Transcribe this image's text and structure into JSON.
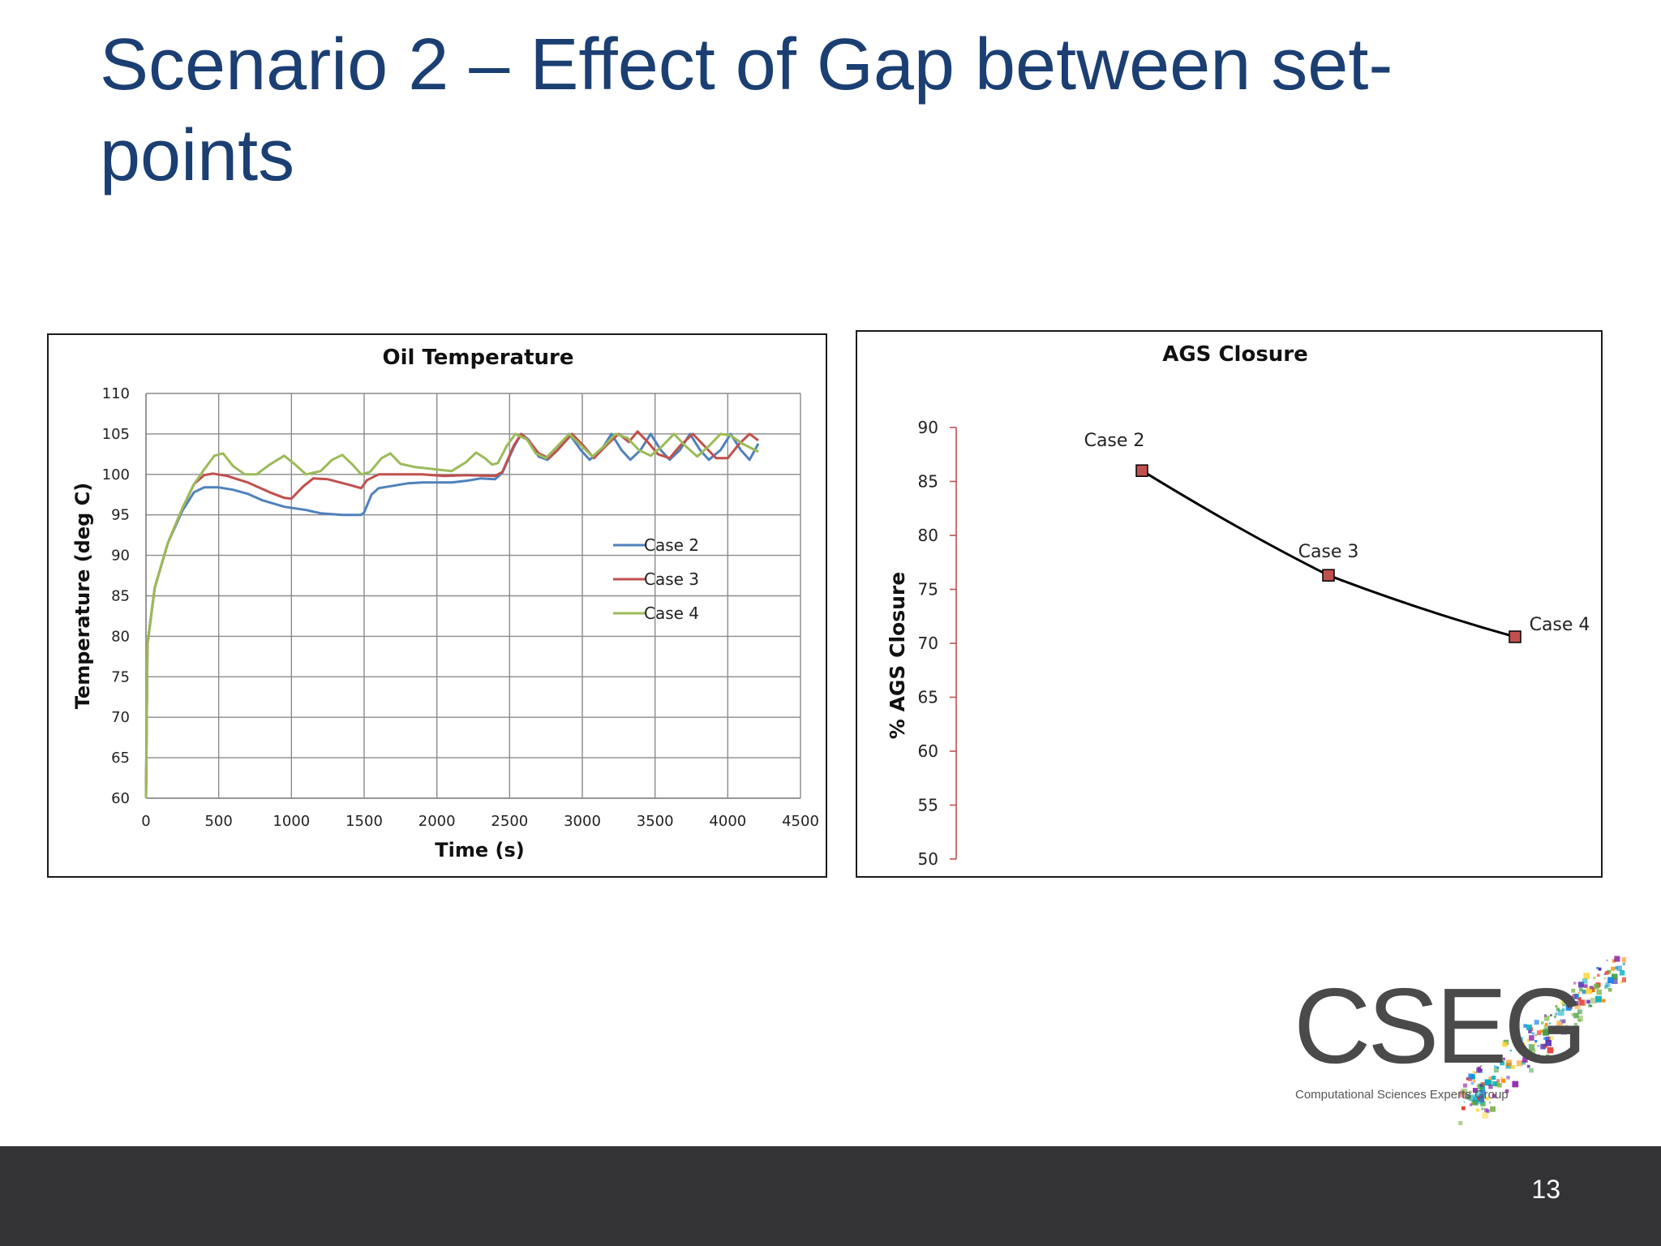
{
  "slide": {
    "title": "Scenario 2 – Effect of Gap between set-points",
    "page_number": "13"
  },
  "logo": {
    "text": "CSEG",
    "subtitle": "Computational Sciences Experts Group"
  },
  "colors": {
    "title": "#1b3f73",
    "case2": "#4f81bd",
    "case3": "#c0504d",
    "case4": "#9bbb59",
    "ags_line": "#000000",
    "ags_marker": "#c0504d",
    "ags_axis": "#c0504d",
    "footer": "#333335"
  },
  "chart_data": [
    {
      "type": "line",
      "title": "Oil Temperature",
      "xlabel": "Time (s)",
      "ylabel": "Temperature (deg C)",
      "xlim": [
        0,
        4500
      ],
      "ylim": [
        60,
        110
      ],
      "xticks": [
        "0",
        "500",
        "1000",
        "1500",
        "2000",
        "2500",
        "3000",
        "3500",
        "4000",
        "4500"
      ],
      "yticks": [
        "60",
        "65",
        "70",
        "75",
        "80",
        "85",
        "90",
        "95",
        "100",
        "105",
        "110"
      ],
      "grid": true,
      "legend": "center-right",
      "series": [
        {
          "name": "Case 2",
          "points": [
            [
              0,
              60
            ],
            [
              10,
              79
            ],
            [
              60,
              86
            ],
            [
              150,
              91.5
            ],
            [
              250,
              95.5
            ],
            [
              330,
              97.8
            ],
            [
              400,
              98.4
            ],
            [
              500,
              98.4
            ],
            [
              600,
              98.1
            ],
            [
              700,
              97.6
            ],
            [
              800,
              96.8
            ],
            [
              950,
              96
            ],
            [
              1100,
              95.6
            ],
            [
              1200,
              95.2
            ],
            [
              1350,
              95
            ],
            [
              1480,
              95
            ],
            [
              1500,
              95.3
            ],
            [
              1550,
              97.5
            ],
            [
              1600,
              98.3
            ],
            [
              1700,
              98.6
            ],
            [
              1800,
              98.9
            ],
            [
              1900,
              99
            ],
            [
              2000,
              99
            ],
            [
              2100,
              99
            ],
            [
              2200,
              99.2
            ],
            [
              2300,
              99.5
            ],
            [
              2400,
              99.4
            ],
            [
              2450,
              100.2
            ],
            [
              2530,
              103.4
            ],
            [
              2580,
              105
            ],
            [
              2630,
              104.3
            ],
            [
              2700,
              102.2
            ],
            [
              2760,
              101.8
            ],
            [
              2830,
              103
            ],
            [
              2910,
              105
            ],
            [
              2990,
              103
            ],
            [
              3050,
              101.8
            ],
            [
              3130,
              103
            ],
            [
              3200,
              105
            ],
            [
              3270,
              103
            ],
            [
              3330,
              101.8
            ],
            [
              3400,
              103
            ],
            [
              3470,
              105
            ],
            [
              3540,
              103
            ],
            [
              3600,
              101.8
            ],
            [
              3670,
              103
            ],
            [
              3740,
              105
            ],
            [
              3810,
              103
            ],
            [
              3870,
              101.8
            ],
            [
              3950,
              103
            ],
            [
              4020,
              105
            ],
            [
              4090,
              103
            ],
            [
              4150,
              101.8
            ],
            [
              4210,
              103.8
            ]
          ]
        },
        {
          "name": "Case 3",
          "points": [
            [
              0,
              60
            ],
            [
              10,
              79
            ],
            [
              60,
              86
            ],
            [
              150,
              91.5
            ],
            [
              250,
              95.8
            ],
            [
              330,
              98.8
            ],
            [
              400,
              99.9
            ],
            [
              460,
              100.1
            ],
            [
              560,
              99.8
            ],
            [
              700,
              99
            ],
            [
              850,
              97.8
            ],
            [
              950,
              97.1
            ],
            [
              1000,
              97
            ],
            [
              1080,
              98.5
            ],
            [
              1150,
              99.5
            ],
            [
              1250,
              99.4
            ],
            [
              1400,
              98.7
            ],
            [
              1480,
              98.3
            ],
            [
              1520,
              99.3
            ],
            [
              1600,
              100
            ],
            [
              1750,
              100
            ],
            [
              1900,
              100
            ],
            [
              2050,
              99.8
            ],
            [
              2200,
              99.9
            ],
            [
              2400,
              99.8
            ],
            [
              2450,
              100.3
            ],
            [
              2530,
              103.6
            ],
            [
              2580,
              105
            ],
            [
              2640,
              104
            ],
            [
              2700,
              102.6
            ],
            [
              2770,
              102
            ],
            [
              2840,
              103.2
            ],
            [
              2930,
              105
            ],
            [
              3010,
              103.5
            ],
            [
              3080,
              102
            ],
            [
              3160,
              103.5
            ],
            [
              3250,
              105
            ],
            [
              3320,
              104
            ],
            [
              3380,
              105.3
            ],
            [
              3450,
              104
            ],
            [
              3520,
              102.5
            ],
            [
              3600,
              102
            ],
            [
              3670,
              103.5
            ],
            [
              3760,
              105
            ],
            [
              3840,
              103.5
            ],
            [
              3920,
              102
            ],
            [
              4000,
              102
            ],
            [
              4080,
              103.8
            ],
            [
              4150,
              105
            ],
            [
              4210,
              104.2
            ]
          ]
        },
        {
          "name": "Case 4",
          "points": [
            [
              0,
              60
            ],
            [
              10,
              79
            ],
            [
              60,
              86
            ],
            [
              150,
              91.5
            ],
            [
              250,
              95.8
            ],
            [
              330,
              98.8
            ],
            [
              400,
              100.6
            ],
            [
              470,
              102.3
            ],
            [
              530,
              102.6
            ],
            [
              600,
              101
            ],
            [
              680,
              100
            ],
            [
              760,
              100
            ],
            [
              850,
              101.2
            ],
            [
              950,
              102.3
            ],
            [
              1020,
              101.3
            ],
            [
              1100,
              100
            ],
            [
              1200,
              100.4
            ],
            [
              1280,
              101.8
            ],
            [
              1350,
              102.4
            ],
            [
              1420,
              101.2
            ],
            [
              1480,
              100
            ],
            [
              1540,
              100.3
            ],
            [
              1620,
              102
            ],
            [
              1680,
              102.6
            ],
            [
              1750,
              101.3
            ],
            [
              1850,
              100.9
            ],
            [
              1950,
              100.7
            ],
            [
              2100,
              100.4
            ],
            [
              2200,
              101.5
            ],
            [
              2270,
              102.7
            ],
            [
              2330,
              102
            ],
            [
              2380,
              101.2
            ],
            [
              2420,
              101.4
            ],
            [
              2480,
              103.5
            ],
            [
              2540,
              105
            ],
            [
              2620,
              104.3
            ],
            [
              2680,
              102.6
            ],
            [
              2750,
              102
            ],
            [
              2830,
              103.5
            ],
            [
              2910,
              105
            ],
            [
              2990,
              103.6
            ],
            [
              3070,
              102.2
            ],
            [
              3150,
              103.5
            ],
            [
              3230,
              105
            ],
            [
              3310,
              104.5
            ],
            [
              3390,
              103
            ],
            [
              3470,
              102.3
            ],
            [
              3550,
              103.5
            ],
            [
              3630,
              105
            ],
            [
              3710,
              103.5
            ],
            [
              3790,
              102.2
            ],
            [
              3870,
              103.5
            ],
            [
              3950,
              105
            ],
            [
              4020,
              104.8
            ],
            [
              4100,
              103.8
            ],
            [
              4210,
              102.8
            ]
          ]
        }
      ]
    },
    {
      "type": "line",
      "title": "AGS Closure",
      "xlabel": "",
      "ylabel": "% AGS Closure",
      "ylim": [
        50,
        90
      ],
      "yticks": [
        "50",
        "55",
        "60",
        "65",
        "70",
        "75",
        "80",
        "85",
        "90"
      ],
      "grid": false,
      "categories": [
        "Case 2",
        "Case 3",
        "Case 4"
      ],
      "values": [
        86,
        76.3,
        70.6
      ]
    }
  ]
}
